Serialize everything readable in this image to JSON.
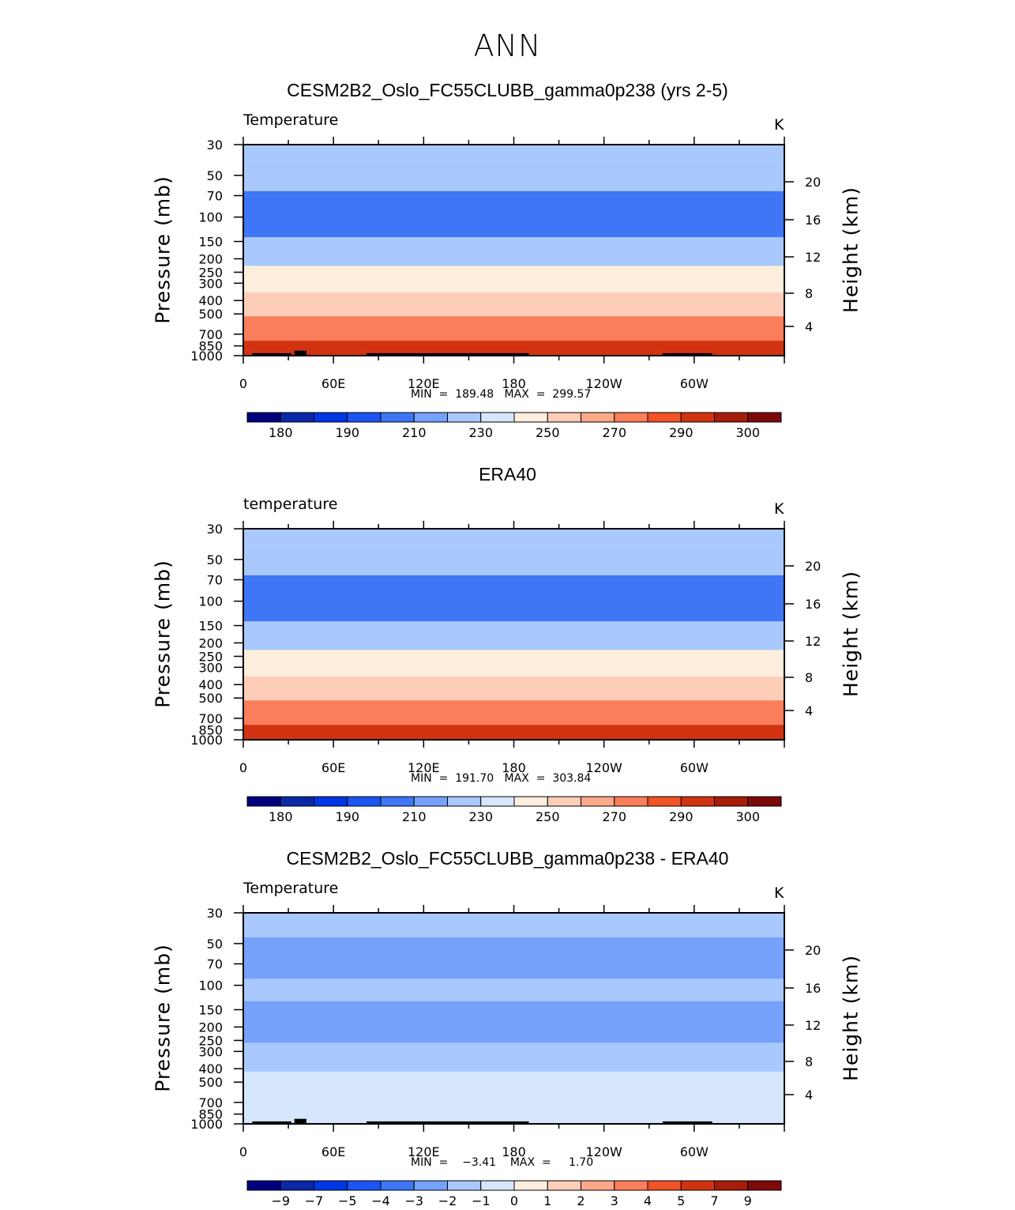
{
  "main_title": "ANN",
  "colors": {
    "land": "#000000",
    "axes": "#000000"
  },
  "panels": [
    {
      "title": "CESM2B2_Oslo_FC55CLUBB_gamma0p238 (yrs 2-5)",
      "left_label": "Temperature",
      "units": "K",
      "ylabel": "Pressure  (mb)",
      "ylabel2": "Height  (km)",
      "minmax": "MIN  =  189.48   MAX  =  299.57",
      "show_land": true
    },
    {
      "title": "ERA40",
      "left_label": "temperature",
      "units": "K",
      "ylabel": "Pressure  (mb)",
      "ylabel2": "Height  (km)",
      "minmax": "MIN  =  191.70   MAX  =  303.84",
      "show_land": false
    },
    {
      "title": "CESM2B2_Oslo_FC55CLUBB_gamma0p238 - ERA40",
      "left_label": "Temperature",
      "units": "K",
      "ylabel": "Pressure  (mb)",
      "ylabel2": "Height  (km)",
      "minmax": "MIN  =    −3.41    MAX  =     1.70",
      "show_land": true
    }
  ],
  "chart_data": [
    {
      "type": "heatmap",
      "title": "CESM2B2_Oslo_FC55CLUBB_gamma0p238 (yrs 2-5)",
      "variable": "Temperature",
      "units": "K",
      "xlabel": "",
      "ylabel": "Pressure (mb)",
      "ylabel_right": "Height (km)",
      "x_range": [
        0,
        360
      ],
      "x_ticks": [
        "0",
        "60E",
        "120E",
        "180",
        "120W",
        "60W"
      ],
      "x_tick_values": [
        0,
        60,
        120,
        180,
        240,
        300
      ],
      "y_range_mb": [
        30,
        1000
      ],
      "y_ticks": [
        "30",
        "50",
        "70",
        "100",
        "150",
        "200",
        "250",
        "300",
        "400",
        "500",
        "700",
        "850",
        "1000"
      ],
      "y_tick_values": [
        30,
        50,
        70,
        100,
        150,
        200,
        250,
        300,
        400,
        500,
        700,
        850,
        1000
      ],
      "height_ticks": [
        "4",
        "8",
        "12",
        "16",
        "20"
      ],
      "height_tick_values": [
        4,
        8,
        12,
        16,
        20
      ],
      "min": 189.48,
      "max": 299.57,
      "colorbar_labels": [
        "180",
        "190",
        "210",
        "230",
        "250",
        "270",
        "290",
        "300"
      ],
      "bands": [
        {
          "p_top": 30,
          "p_bot": 40,
          "value": 220
        },
        {
          "p_top": 40,
          "p_bot": 65,
          "value": 210
        },
        {
          "p_top": 65,
          "p_bot": 140,
          "value": 200
        },
        {
          "p_top": 140,
          "p_bot": 180,
          "value": 210
        },
        {
          "p_top": 180,
          "p_bot": 225,
          "value": 220
        },
        {
          "p_top": 225,
          "p_bot": 290,
          "value": 230
        },
        {
          "p_top": 290,
          "p_bot": 350,
          "value": 240
        },
        {
          "p_top": 350,
          "p_bot": 420,
          "value": 250
        },
        {
          "p_top": 420,
          "p_bot": 520,
          "value": 260
        },
        {
          "p_top": 520,
          "p_bot": 640,
          "value": 270
        },
        {
          "p_top": 640,
          "p_bot": 780,
          "value": 280
        },
        {
          "p_top": 780,
          "p_bot": 930,
          "value": 290
        },
        {
          "p_top": 930,
          "p_bot": 1000,
          "value": 295
        }
      ]
    },
    {
      "type": "heatmap",
      "title": "ERA40",
      "variable": "temperature",
      "units": "K",
      "xlabel": "",
      "ylabel": "Pressure (mb)",
      "ylabel_right": "Height (km)",
      "x_range": [
        0,
        360
      ],
      "x_ticks": [
        "0",
        "60E",
        "120E",
        "180",
        "120W",
        "60W"
      ],
      "x_tick_values": [
        0,
        60,
        120,
        180,
        240,
        300
      ],
      "y_range_mb": [
        30,
        1000
      ],
      "y_ticks": [
        "30",
        "50",
        "70",
        "100",
        "150",
        "200",
        "250",
        "300",
        "400",
        "500",
        "700",
        "850",
        "1000"
      ],
      "y_tick_values": [
        30,
        50,
        70,
        100,
        150,
        200,
        250,
        300,
        400,
        500,
        700,
        850,
        1000
      ],
      "height_ticks": [
        "4",
        "8",
        "12",
        "16",
        "20"
      ],
      "height_tick_values": [
        4,
        8,
        12,
        16,
        20
      ],
      "min": 191.7,
      "max": 303.84,
      "colorbar_labels": [
        "180",
        "190",
        "210",
        "230",
        "250",
        "270",
        "290",
        "300"
      ],
      "bands": [
        {
          "p_top": 30,
          "p_bot": 40,
          "value": 220
        },
        {
          "p_top": 40,
          "p_bot": 65,
          "value": 210
        },
        {
          "p_top": 65,
          "p_bot": 140,
          "value": 200
        },
        {
          "p_top": 140,
          "p_bot": 180,
          "value": 210
        },
        {
          "p_top": 180,
          "p_bot": 225,
          "value": 220
        },
        {
          "p_top": 225,
          "p_bot": 290,
          "value": 230
        },
        {
          "p_top": 290,
          "p_bot": 350,
          "value": 240
        },
        {
          "p_top": 350,
          "p_bot": 420,
          "value": 250
        },
        {
          "p_top": 420,
          "p_bot": 520,
          "value": 260
        },
        {
          "p_top": 520,
          "p_bot": 640,
          "value": 270
        },
        {
          "p_top": 640,
          "p_bot": 780,
          "value": 280
        },
        {
          "p_top": 780,
          "p_bot": 930,
          "value": 290
        },
        {
          "p_top": 930,
          "p_bot": 1000,
          "value": 295
        }
      ]
    },
    {
      "type": "heatmap",
      "title": "CESM2B2_Oslo_FC55CLUBB_gamma0p238 - ERA40",
      "variable": "Temperature",
      "units": "K",
      "xlabel": "",
      "ylabel": "Pressure (mb)",
      "ylabel_right": "Height (km)",
      "x_range": [
        0,
        360
      ],
      "x_ticks": [
        "0",
        "60E",
        "120E",
        "180",
        "120W",
        "60W"
      ],
      "x_tick_values": [
        0,
        60,
        120,
        180,
        240,
        300
      ],
      "y_range_mb": [
        30,
        1000
      ],
      "y_ticks": [
        "30",
        "50",
        "70",
        "100",
        "150",
        "200",
        "250",
        "300",
        "400",
        "500",
        "700",
        "850",
        "1000"
      ],
      "y_tick_values": [
        30,
        50,
        70,
        100,
        150,
        200,
        250,
        300,
        400,
        500,
        700,
        850,
        1000
      ],
      "height_ticks": [
        "4",
        "8",
        "12",
        "16",
        "20"
      ],
      "height_tick_values": [
        4,
        8,
        12,
        16,
        20
      ],
      "min": -3.41,
      "max": 1.7,
      "colorbar_labels": [
        "−9",
        "−7",
        "−5",
        "−4",
        "−3",
        "−2",
        "−1",
        "0",
        "1",
        "2",
        "3",
        "4",
        "5",
        "7",
        "9"
      ],
      "bands": [
        {
          "p_top": 30,
          "p_bot": 45,
          "value": -2
        },
        {
          "p_top": 45,
          "p_bot": 90,
          "value": -3
        },
        {
          "p_top": 90,
          "p_bot": 130,
          "value": -2
        },
        {
          "p_top": 130,
          "p_bot": 260,
          "value": -3
        },
        {
          "p_top": 260,
          "p_bot": 420,
          "value": -2
        },
        {
          "p_top": 420,
          "p_bot": 1000,
          "value": -1
        }
      ]
    }
  ],
  "colorbar_colors": [
    "#00007f",
    "#0a28a8",
    "#0036e6",
    "#1d55f4",
    "#3e76f6",
    "#75a1fa",
    "#a9c8fc",
    "#d6e7fd",
    "#fdeede",
    "#fdcdb7",
    "#fca889",
    "#fa7e5a",
    "#f25326",
    "#d13311",
    "#a71c0b",
    "#7d0a0a"
  ],
  "land_segments_deg": [
    [
      6,
      32
    ],
    [
      34,
      42
    ],
    [
      82,
      190
    ],
    [
      279,
      312
    ]
  ]
}
